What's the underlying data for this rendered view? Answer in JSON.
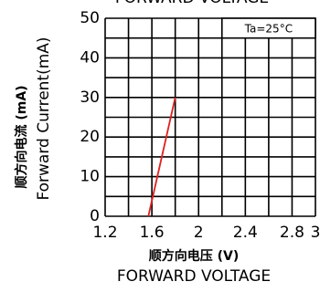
{
  "chart_data": {
    "type": "line",
    "title": "FORWARD VOLTAGE",
    "xlabel_cn": "顺方向电压 (V)",
    "xlabel": "FORWARD VOLTAGE",
    "ylabel_cn": "顺方向电流 (mA)",
    "ylabel": "Forward Current(mA)",
    "annotation": "Ta=25°C",
    "x": [
      1.57,
      1.8
    ],
    "series": [
      {
        "color": "#e02020",
        "values": [
          0,
          30
        ]
      }
    ],
    "xlim": [
      1.2,
      3.0
    ],
    "xticks": [
      1.2,
      1.6,
      2.0,
      2.4,
      2.8,
      3.0
    ],
    "ylim": [
      0,
      50
    ],
    "yticks": [
      0,
      10,
      20,
      30,
      40,
      50
    ],
    "x_gridlines": [
      1.2,
      1.4,
      1.6,
      1.8,
      2.0,
      2.2,
      2.4,
      2.6,
      2.8,
      3.0
    ],
    "y_gridlines": [
      0,
      5,
      10,
      15,
      20,
      25,
      30,
      35,
      40,
      45,
      50
    ],
    "grid": true
  }
}
